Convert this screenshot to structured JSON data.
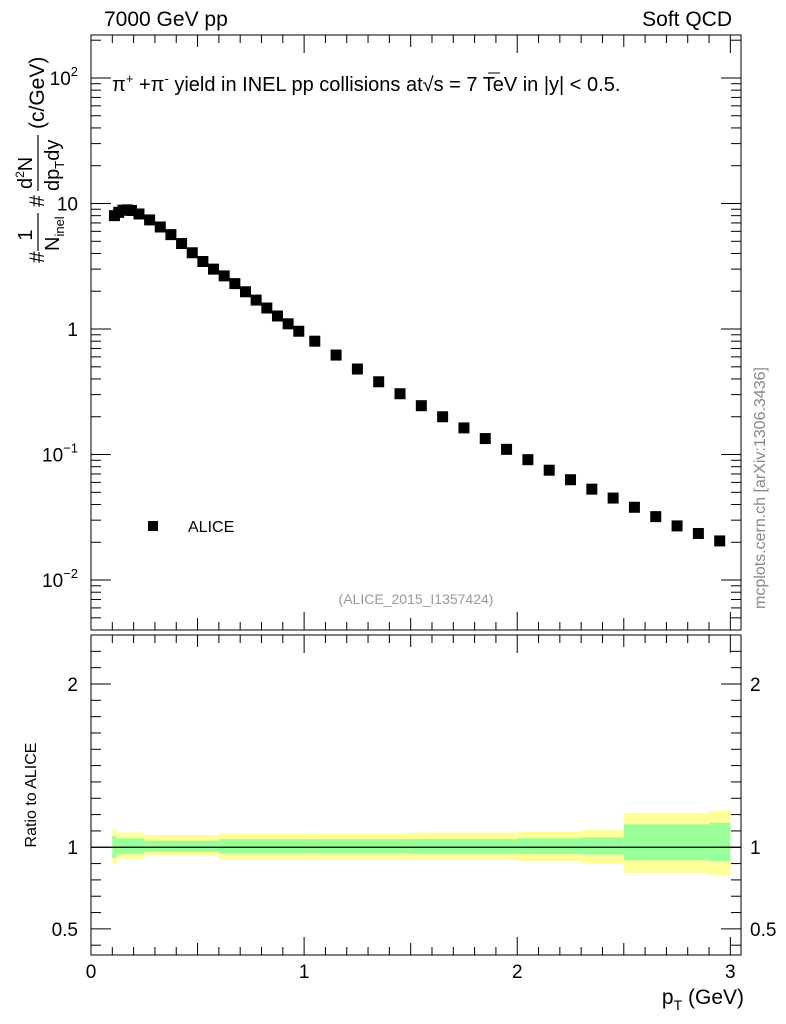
{
  "header": {
    "left": "7000 GeV pp",
    "right": "Soft QCD"
  },
  "side_label": "mcplots.cern.ch [arXiv:1306.3436]",
  "analysis_id": "(ALICE_2015_I1357424)",
  "chart_data": [
    {
      "type": "scatter",
      "panel": "main",
      "title": "π+ +π- yield in INEL pp collisions at √s =  7 TeV in |y| < 0.5.",
      "title_parts": {
        "pi": "π",
        "plus_sup": "+",
        "mid": " +π",
        "minus_sup": "-",
        "text": " yield in INEL pp collisions at",
        "sqrt": "√",
        "s": "s",
        "tail": " =  7 TeV in |y| < 0.5."
      },
      "ylabel_parts": {
        "hash": "#",
        "one": "1",
        "n_inel": "N",
        "inel_sub": "inel",
        "dn": "d",
        "dn_sup": "2",
        "dn_n": "N",
        "dp": "dp",
        "dp_sub": "T",
        "dy": "dy",
        "units": "(c/GeV)"
      },
      "yscale": "log",
      "ylim": [
        0.004,
        220
      ],
      "xlim": [
        0,
        3.05
      ],
      "yticks": [
        {
          "v": 0.01,
          "label": "10",
          "exp": "−2"
        },
        {
          "v": 0.1,
          "label": "10",
          "exp": "−1"
        },
        {
          "v": 1,
          "label": "1",
          "exp": ""
        },
        {
          "v": 10,
          "label": "10",
          "exp": ""
        },
        {
          "v": 100,
          "label": "10",
          "exp": "2"
        }
      ],
      "legend": {
        "position": "lower-left",
        "entries": [
          "ALICE"
        ]
      },
      "series": [
        {
          "name": "ALICE",
          "marker": "square",
          "color": "#000000",
          "x": [
            0.11,
            0.13,
            0.15,
            0.17,
            0.19,
            0.225,
            0.275,
            0.325,
            0.375,
            0.425,
            0.475,
            0.525,
            0.575,
            0.625,
            0.675,
            0.725,
            0.775,
            0.825,
            0.875,
            0.925,
            0.975,
            1.05,
            1.15,
            1.25,
            1.35,
            1.45,
            1.55,
            1.65,
            1.75,
            1.85,
            1.95,
            2.05,
            2.15,
            2.25,
            2.35,
            2.45,
            2.55,
            2.65,
            2.75,
            2.85,
            2.95
          ],
          "y": [
            8.0,
            8.5,
            8.85,
            8.9,
            8.8,
            8.25,
            7.4,
            6.5,
            5.65,
            4.8,
            4.05,
            3.45,
            3.0,
            2.65,
            2.3,
            1.98,
            1.7,
            1.47,
            1.27,
            1.1,
            0.96,
            0.8,
            0.62,
            0.48,
            0.38,
            0.305,
            0.245,
            0.2,
            0.163,
            0.134,
            0.11,
            0.091,
            0.075,
            0.063,
            0.053,
            0.045,
            0.038,
            0.032,
            0.027,
            0.0235,
            0.0205
          ]
        }
      ]
    },
    {
      "type": "area",
      "panel": "ratio",
      "ylabel": "Ratio to ALICE",
      "xlabel": "p_T (GeV)",
      "xlabel_parts": {
        "p": "p",
        "sub": "T",
        "units": " (GeV)"
      },
      "xlim": [
        0,
        3.05
      ],
      "ylim": [
        0.34,
        2.3
      ],
      "xticks": [
        0,
        1,
        2,
        3
      ],
      "yticks": [
        0.5,
        1,
        2
      ],
      "reference_line": 1,
      "bands": [
        {
          "x0": 0.1,
          "x1": 0.12,
          "outer": [
            0.895,
            1.115
          ],
          "inner": [
            0.935,
            1.07
          ]
        },
        {
          "x0": 0.12,
          "x1": 0.25,
          "outer": [
            0.93,
            1.09
          ],
          "inner": [
            0.96,
            1.055
          ]
        },
        {
          "x0": 0.25,
          "x1": 0.6,
          "outer": [
            0.95,
            1.075
          ],
          "inner": [
            0.972,
            1.04
          ]
        },
        {
          "x0": 0.6,
          "x1": 1.0,
          "outer": [
            0.925,
            1.085
          ],
          "inner": [
            0.962,
            1.05
          ]
        },
        {
          "x0": 1.0,
          "x1": 1.5,
          "outer": [
            0.925,
            1.085
          ],
          "inner": [
            0.962,
            1.05
          ]
        },
        {
          "x0": 1.5,
          "x1": 2.0,
          "outer": [
            0.922,
            1.09
          ],
          "inner": [
            0.96,
            1.05
          ]
        },
        {
          "x0": 2.0,
          "x1": 2.3,
          "outer": [
            0.915,
            1.095
          ],
          "inner": [
            0.958,
            1.055
          ]
        },
        {
          "x0": 2.3,
          "x1": 2.5,
          "outer": [
            0.9,
            1.105
          ],
          "inner": [
            0.955,
            1.06
          ]
        },
        {
          "x0": 2.5,
          "x1": 2.9,
          "outer": [
            0.84,
            1.21
          ],
          "inner": [
            0.92,
            1.14
          ]
        },
        {
          "x0": 2.9,
          "x1": 3.0,
          "outer": [
            0.83,
            1.225
          ],
          "inner": [
            0.915,
            1.15
          ]
        }
      ],
      "colors": {
        "outer": "#ffff99",
        "inner": "#99ff99"
      }
    }
  ]
}
